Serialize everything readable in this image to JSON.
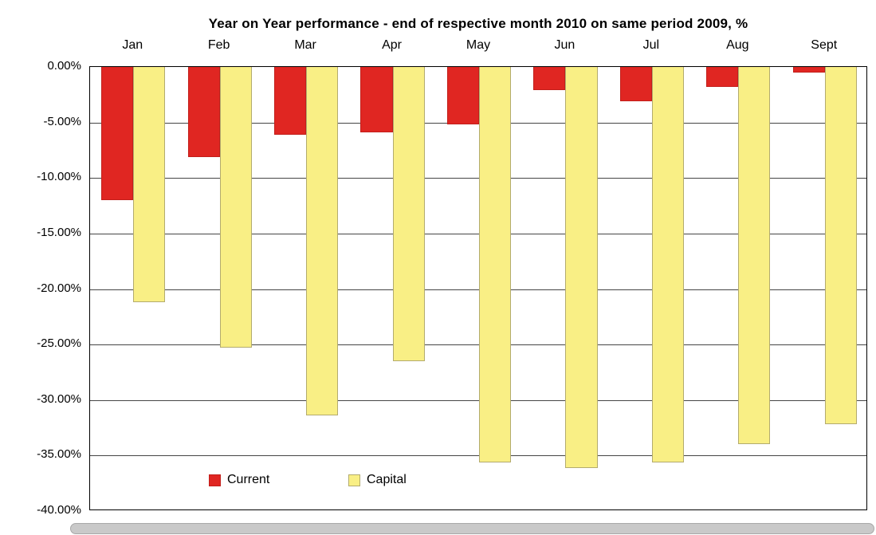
{
  "chart_data": {
    "type": "bar",
    "title": "Year on Year performance - end of respective month 2010 on same period 2009, %",
    "categories": [
      "Jan",
      "Feb",
      "Mar",
      "Apr",
      "May",
      "Jun",
      "Jul",
      "Aug",
      "Sept"
    ],
    "series": [
      {
        "name": "Current",
        "color": "#e02622",
        "border": "#c21f1b",
        "values": [
          -12.0,
          -8.1,
          -6.1,
          -5.9,
          -5.2,
          -2.1,
          -3.1,
          -1.8,
          -0.5
        ]
      },
      {
        "name": "Capital",
        "color": "#f9ef85",
        "border": "#b3ab6e",
        "values": [
          -21.2,
          -25.3,
          -31.4,
          -26.5,
          -35.6,
          -36.1,
          -35.6,
          -34.0,
          -32.2
        ]
      }
    ],
    "ylim": [
      -40,
      0
    ],
    "ytick_step": 5,
    "ytick_labels": [
      "0.00%",
      "-5.00%",
      "-10.00%",
      "-15.00%",
      "-20.00%",
      "-25.00%",
      "-30.00%",
      "-35.00%",
      "-40.00%"
    ],
    "grid": true,
    "grid_color": "#454545",
    "plot_border_color": "#000000",
    "legend_position": "bottom-inside"
  }
}
